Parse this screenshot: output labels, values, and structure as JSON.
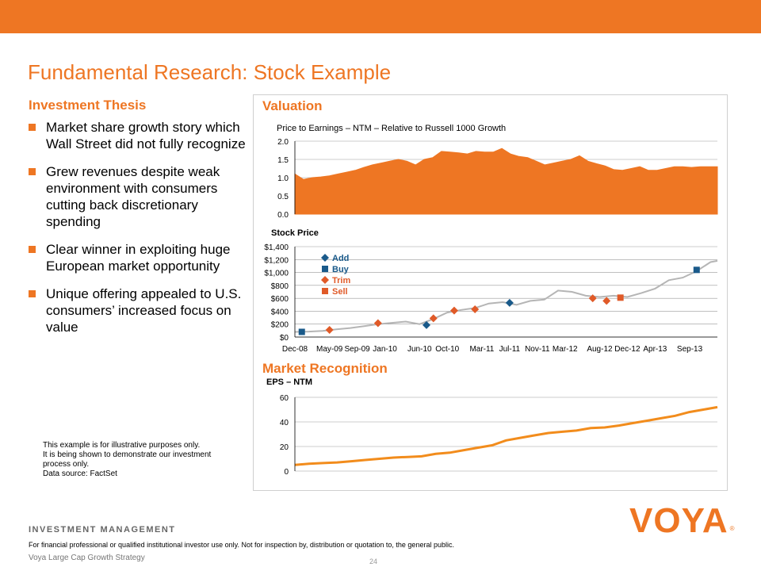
{
  "colors": {
    "accent": "#ee7623",
    "topbar": "#ee7623",
    "area": "#ee7623",
    "stock_line": "#b5b5b5",
    "add": "#1a5a8a",
    "buy": "#1a5a8a",
    "trim": "#e05a28",
    "sell": "#e05a28",
    "eps_line": "#f28c1c"
  },
  "title": "Fundamental Research: Stock Example",
  "thesis": {
    "heading": "Investment Thesis",
    "bullets": [
      "Market share growth story which Wall Street did not fully recognize",
      "Grew revenues despite weak environment with consumers cutting back discretionary spending",
      "Clear winner in exploiting huge European market opportunity",
      "Unique offering appealed to U.S. consumers’ increased focus on value"
    ]
  },
  "disclaimer": [
    "This example is for illustrative purposes only.",
    "It is being shown to demonstrate our investment",
    "process only.",
    "Data source: FactSet"
  ],
  "valuation": {
    "heading": "Valuation"
  },
  "market_recognition": {
    "heading": "Market Recognition"
  },
  "chart_data": [
    {
      "type": "area",
      "title": "Price to Earnings – NTM – Relative to Russell 1000 Growth",
      "ylim": [
        0,
        2.0
      ],
      "yticks": [
        "2.0",
        "1.5",
        "1.0",
        "0.5",
        "0.0"
      ],
      "ytick_values": [
        2.0,
        1.5,
        1.0,
        0.5,
        0.0
      ],
      "y": [
        1.1,
        0.95,
        1.0,
        1.02,
        1.05,
        1.1,
        1.15,
        1.2,
        1.28,
        1.35,
        1.4,
        1.45,
        1.5,
        1.45,
        1.35,
        1.5,
        1.55,
        1.72,
        1.7,
        1.68,
        1.65,
        1.72,
        1.7,
        1.7,
        1.8,
        1.65,
        1.58,
        1.55,
        1.45,
        1.35,
        1.4,
        1.45,
        1.5,
        1.6,
        1.45,
        1.38,
        1.32,
        1.22,
        1.2,
        1.25,
        1.3,
        1.2,
        1.2,
        1.25,
        1.3,
        1.3,
        1.28,
        1.3,
        1.3,
        1.3
      ]
    },
    {
      "type": "line",
      "title": "Stock Price",
      "ylim": [
        0,
        1400
      ],
      "yticks": [
        "$1,400",
        "$1,200",
        "$1,000",
        "$800",
        "$600",
        "$400",
        "$200",
        "$0"
      ],
      "ytick_values": [
        1400,
        1200,
        1000,
        800,
        600,
        400,
        200,
        0
      ],
      "xticks": [
        "Dec-08",
        "May-09",
        "Sep-09",
        "Jan-10",
        "Jun-10",
        "Oct-10",
        "Mar-11",
        "Jul-11",
        "Nov-11",
        "Mar-12",
        "Aug-12",
        "Dec-12",
        "Apr-13",
        "Sep-13"
      ],
      "x_start": "Dec-08",
      "x_end": "Jan-14",
      "series": [
        {
          "x": [
            "Dec-08",
            "Feb-09",
            "Apr-09",
            "Jun-09",
            "Aug-09",
            "Oct-09",
            "Dec-09",
            "Feb-10",
            "Apr-10",
            "Jun-10",
            "Aug-10",
            "Oct-10",
            "Dec-10",
            "Feb-11",
            "Apr-11",
            "Jun-11",
            "Aug-11",
            "Oct-11",
            "Dec-11",
            "Feb-12",
            "Apr-12",
            "Jun-12",
            "Aug-12",
            "Oct-12",
            "Dec-12",
            "Feb-13",
            "Apr-13",
            "Jun-13",
            "Aug-13",
            "Oct-13",
            "Dec-13",
            "Jan-14"
          ],
          "y": [
            80,
            85,
            95,
            120,
            140,
            170,
            200,
            220,
            240,
            200,
            280,
            380,
            420,
            450,
            520,
            540,
            500,
            560,
            580,
            720,
            700,
            640,
            620,
            640,
            620,
            680,
            750,
            880,
            920,
            1020,
            1160,
            1180
          ]
        }
      ],
      "legend": [
        {
          "label": "Add",
          "marker": "diamond",
          "color": "#1a5a8a"
        },
        {
          "label": "Buy",
          "marker": "square",
          "color": "#1a5a8a"
        },
        {
          "label": "Trim",
          "marker": "diamond",
          "color": "#e05a28"
        },
        {
          "label": "Sell",
          "marker": "square",
          "color": "#e05a28"
        }
      ],
      "trades": [
        {
          "x": "Jan-09",
          "y": 80,
          "type": "Buy"
        },
        {
          "x": "May-09",
          "y": 110,
          "type": "Trim"
        },
        {
          "x": "Dec-09",
          "y": 215,
          "type": "Trim"
        },
        {
          "x": "Jul-10",
          "y": 185,
          "type": "Add"
        },
        {
          "x": "Aug-10",
          "y": 290,
          "type": "Trim"
        },
        {
          "x": "Nov-10",
          "y": 410,
          "type": "Trim"
        },
        {
          "x": "Feb-11",
          "y": 430,
          "type": "Trim"
        },
        {
          "x": "Jul-11",
          "y": 530,
          "type": "Add"
        },
        {
          "x": "Jul-12",
          "y": 600,
          "type": "Trim"
        },
        {
          "x": "Sep-12",
          "y": 560,
          "type": "Trim"
        },
        {
          "x": "Nov-12",
          "y": 610,
          "type": "Sell"
        },
        {
          "x": "Oct-13",
          "y": 1040,
          "type": "Buy"
        }
      ]
    },
    {
      "type": "line",
      "title": "EPS – NTM",
      "ylim": [
        0,
        60
      ],
      "yticks": [
        "60",
        "40",
        "20",
        "0"
      ],
      "ytick_values": [
        60,
        40,
        20,
        0
      ],
      "y": [
        5,
        6,
        6.5,
        7,
        8,
        9,
        10,
        11,
        11.5,
        12,
        14,
        15,
        17,
        19,
        21,
        25,
        27,
        29,
        31,
        32,
        33,
        35,
        35.5,
        37,
        39,
        41,
        43,
        45,
        48,
        50,
        52
      ]
    }
  ],
  "footer": {
    "division": "INVESTMENT MANAGEMENT",
    "disclaimer": "For financial professional or qualified institutional investor use only. Not for inspection by, distribution or quotation to, the general public.",
    "strategy": "Voya Large Cap Growth Strategy",
    "page": "24"
  },
  "logo": {
    "text": "VOYA",
    "mark": "®"
  }
}
